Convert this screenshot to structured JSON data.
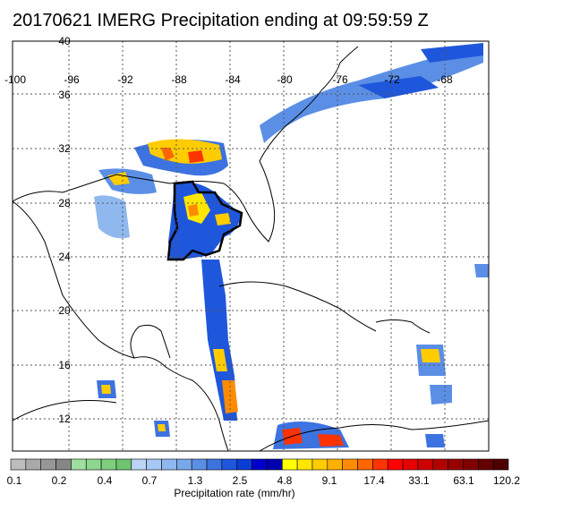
{
  "title": "20170621 IMERG Precipitation ending at 09:59:59 Z",
  "map": {
    "lon_labels": [
      "-100",
      "-96",
      "-92",
      "-88",
      "-84",
      "-80",
      "-76",
      "-72",
      "-68"
    ],
    "lat_labels": [
      "40",
      "36",
      "32",
      "28",
      "24",
      "20",
      "16",
      "12"
    ],
    "lon_range": [
      -100,
      -64
    ],
    "lat_range": [
      10,
      40
    ]
  },
  "colorbar": {
    "label": "Precipitation rate (mm/hr)",
    "tick_labels": [
      "0.1",
      "0.2",
      "0.4",
      "0.7",
      "1.3",
      "2.5",
      "4.8",
      "9.1",
      "17.4",
      "33.1",
      "63.1",
      "120.2"
    ],
    "colors": [
      "#bdbdbd",
      "#a9a9a9",
      "#979797",
      "#868686",
      "#9fdf9f",
      "#8ed68e",
      "#7fcf7f",
      "#6fc46f",
      "#bcd4f4",
      "#a6c8f2",
      "#8fb8ee",
      "#78a8ea",
      "#5b8fe6",
      "#3c73e0",
      "#1f57dc",
      "#0b3dd6",
      "#0000cc",
      "#0000b0",
      "#ffff00",
      "#ffe600",
      "#ffcc00",
      "#ffb000",
      "#ff8c00",
      "#ff6600",
      "#ff3300",
      "#ff0000",
      "#e60000",
      "#cc0000",
      "#b30000",
      "#990000",
      "#800000",
      "#660000",
      "#4d0000"
    ]
  }
}
